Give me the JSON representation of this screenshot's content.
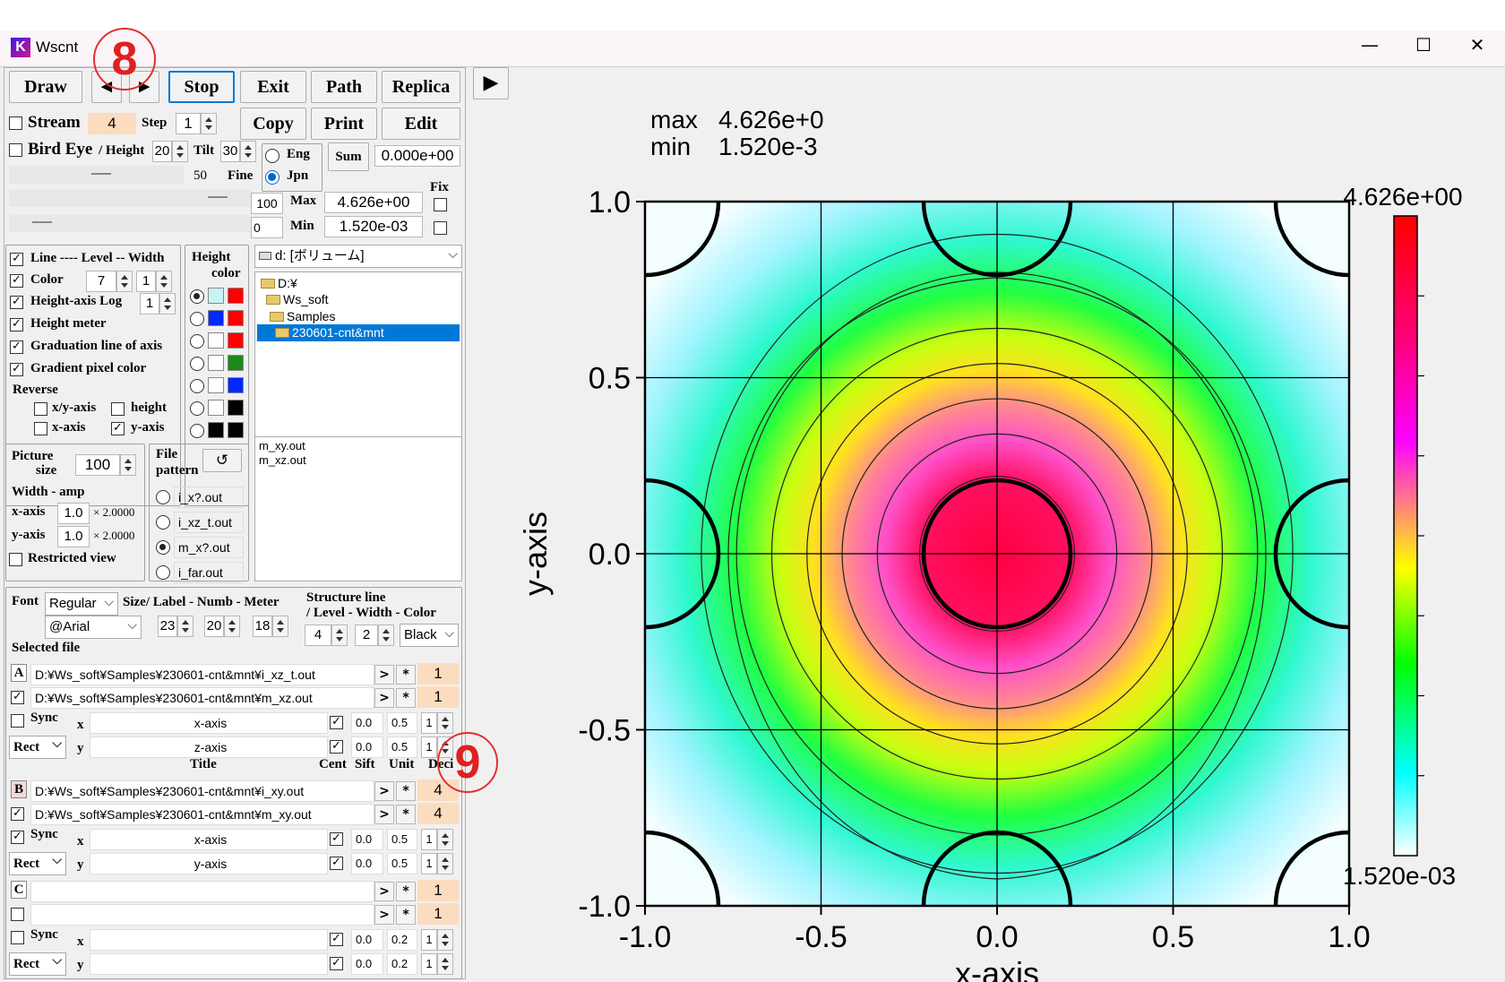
{
  "window": {
    "title": "Wscnt"
  },
  "toolbar": {
    "draw": "Draw",
    "prev": "◀",
    "next": "▶",
    "stop": "Stop",
    "exit": "Exit",
    "path": "Path",
    "replica": "Replica",
    "play": "▶",
    "copy": "Copy",
    "print": "Print",
    "edit": "Edit"
  },
  "stream": {
    "label": "Stream",
    "value": "4",
    "step_label": "Step",
    "step": "1"
  },
  "bird": {
    "label": "Bird Eye",
    "height_label": "/ Height",
    "height": "20",
    "tilt_label": "Tilt",
    "tilt": "30",
    "fine_label": "Fine",
    "fine": "50",
    "v100": "100",
    "v0": "0"
  },
  "lang": {
    "eng": "Eng",
    "jpn": "Jpn"
  },
  "sum": {
    "label": "Sum",
    "value": "0.000e+00",
    "fix": "Fix",
    "max_label": "Max",
    "max": "4.626e+00",
    "min_label": "Min",
    "min": "1.520e-03"
  },
  "options": {
    "line": "Line ---- Level -- Width",
    "color": "Color",
    "color_level": "7",
    "color_width": "1",
    "hlog": "Height-axis Log",
    "hlog_val": "1",
    "hmeter": "Height meter",
    "grad": "Graduation line of axis",
    "gradpix": "Gradient pixel color",
    "reverse": "Reverse",
    "xy": "x/y-axis",
    "height": "height",
    "xaxis": "x-axis",
    "yaxis": "y-axis"
  },
  "heightcolor": {
    "label1": "Height",
    "label2": "color",
    "colors": [
      [
        "#c8f4f8",
        "#ff0000"
      ],
      [
        "#0028ff",
        "#ff0000"
      ],
      [
        "#ffffff",
        "#ff0000"
      ],
      [
        "#ffffff",
        "#1a8a1a"
      ],
      [
        "#ffffff",
        "#0028ff"
      ],
      [
        "#ffffff",
        "#000000"
      ],
      [
        "#000000",
        "#000000"
      ]
    ]
  },
  "drive": "d: [ボリューム]",
  "tree": [
    "D:¥",
    "Ws_soft",
    "Samples",
    "230601-cnt&mnt"
  ],
  "files": [
    "m_xy.out",
    "m_xz.out"
  ],
  "picture": {
    "label1": "Picture",
    "label2": "size",
    "value": "100",
    "width_amp": "Width - amp",
    "xlab": "x-axis",
    "xval": "1.0",
    "xmul": "× 2.0000",
    "ylab": "y-axis",
    "yval": "1.0",
    "ymul": "× 2.0000",
    "restricted": "Restricted view"
  },
  "pattern": {
    "label1": "File",
    "label2": "pattern",
    "refresh": "↺",
    "items": [
      "i_x?.out",
      "i_xz_t.out",
      "m_x?.out",
      "i_far.out"
    ]
  },
  "font": {
    "label": "Font",
    "style": "Regular",
    "face": "@Arial",
    "sizes_label": "Size/ Label - Numb - Meter",
    "label_size": "23",
    "numb_size": "20",
    "meter_size": "18",
    "struct1": "Structure line",
    "struct2": "/ Level - Width - Color",
    "level": "4",
    "width": "2",
    "color": "Black"
  },
  "selected": {
    "label": "Selected file",
    "title_hdr": "Title",
    "cent_hdr": "Cent",
    "sift_hdr": "Sift",
    "unit_hdr": "Unit",
    "deci_hdr": "Deci"
  },
  "groups": [
    {
      "letter": "A",
      "f1": "D:¥Ws_soft¥Samples¥230601-cnt&mnt¥i_xz_t.out",
      "f2": "D:¥Ws_soft¥Samples¥230601-cnt&mnt¥m_xz.out",
      "n1": "1",
      "n2": "1",
      "sync": "Sync",
      "xt": "x-axis",
      "yt": "z-axis",
      "c1": "0.0",
      "s1": "0.5",
      "u1": "1",
      "c2": "0.0",
      "s2": "0.5",
      "u2": "1",
      "rect": "Rect"
    },
    {
      "letter": "B",
      "f1": "D:¥Ws_soft¥Samples¥230601-cnt&mnt¥i_xy.out",
      "f2": "D:¥Ws_soft¥Samples¥230601-cnt&mnt¥m_xy.out",
      "n1": "4",
      "n2": "4",
      "sync": "Sync",
      "xt": "x-axis",
      "yt": "y-axis",
      "c1": "0.0",
      "s1": "0.5",
      "u1": "1",
      "c2": "0.0",
      "s2": "0.5",
      "u2": "1",
      "rect": "Rect"
    },
    {
      "letter": "C",
      "f1": "",
      "f2": "",
      "n1": "1",
      "n2": "1",
      "sync": "Sync",
      "xt": "",
      "yt": "",
      "c1": "0.0",
      "s1": "0.2",
      "u1": "1",
      "c2": "0.0",
      "s2": "0.2",
      "u2": "1",
      "rect": "Rect"
    }
  ],
  "rowbtn": {
    "go": ">",
    "star": "*"
  },
  "callouts": {
    "c8": "8",
    "c9": "9"
  },
  "plot": {
    "max_label": "max",
    "max": "4.626e+0",
    "min_label": "min",
    "min": "1.520e-3",
    "colorbar_max": "4.626e+00",
    "colorbar_min": "1.520e-03",
    "xlabel": "x-axis",
    "ylabel": "y-axis",
    "xticks": [
      "-1.0",
      "-0.5",
      "0.0",
      "0.5",
      "1.0"
    ],
    "yticks": [
      "1.0",
      "0.5",
      "0.0",
      "-0.5",
      "-1.0"
    ]
  },
  "colors": {
    "accent": "#0078d4",
    "orange_field": "#fcdcbf",
    "selection": "#0078d7"
  }
}
